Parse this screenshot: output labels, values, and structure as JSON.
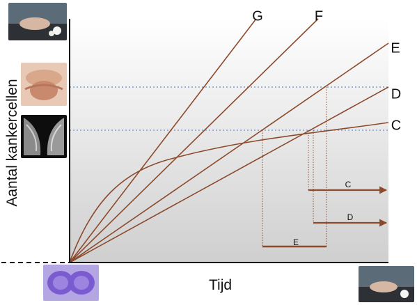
{
  "chart_data": {
    "type": "line",
    "title": "",
    "xlabel": "Tijd",
    "ylabel": "Aantal kankercellen",
    "grid": false,
    "series": [
      {
        "name": "G",
        "color": "#8B4A2B"
      },
      {
        "name": "F",
        "color": "#8B4A2B"
      },
      {
        "name": "E",
        "color": "#8B4A2B"
      },
      {
        "name": "D",
        "color": "#8B4A2B"
      },
      {
        "name": "C",
        "color": "#8B4A2B"
      }
    ],
    "annotations": {
      "arrow_labels": [
        "C",
        "D"
      ],
      "span_label": "E"
    }
  },
  "colors": {
    "line": "#8B4A2B",
    "threshold": "#7F9BD6",
    "background_top": "#ffffff",
    "background_bottom": "#cfcfcf"
  },
  "images": {
    "top_left": "hand-on-coffin-photo",
    "breast_exam": "breast-self-exam-photo",
    "mammogram": "mammogram-photo",
    "cell": "dividing-cell-photo",
    "bottom_right": "hand-on-coffin-photo"
  }
}
